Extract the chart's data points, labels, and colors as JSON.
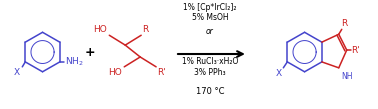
{
  "fig_width": 3.78,
  "fig_height": 1.09,
  "dpi": 100,
  "bg_color": "#ffffff",
  "blue": "#4444cc",
  "red": "#cc2222",
  "black": "#000000",
  "condition_line1": "1% [Cp*IrCl₂]₂",
  "condition_line2": "5% MsOH",
  "condition_or": "or",
  "condition_line3": "1% RuCl₃·xH₂O",
  "condition_line4": "3% PPh₃",
  "condition_line5": "170 °C",
  "fs_cond": 5.5,
  "fs_label": 6.5,
  "fs_plus": 9.0,
  "lw": 1.1
}
